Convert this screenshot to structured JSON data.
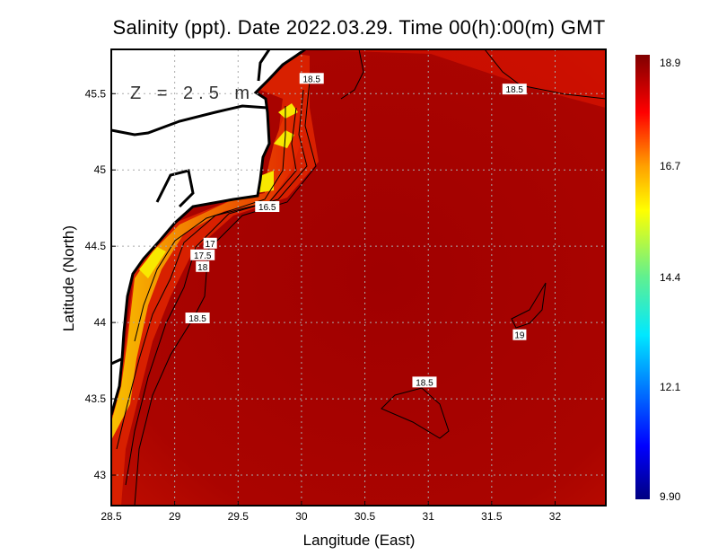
{
  "title": "Salinity (ppt). Date 2022.03.29. Time 00(h):00(m) GMT",
  "depth_label": "Z = 2.5 m",
  "xlabel": "Langitude (East)",
  "ylabel": "Latitude (North)",
  "x_ticks": [
    "28.5",
    "29",
    "29.5",
    "30",
    "30.5",
    "31",
    "31.5",
    "32"
  ],
  "x_tick_values": [
    28.5,
    29,
    29.5,
    30,
    30.5,
    31,
    31.5,
    32
  ],
  "y_ticks": [
    "43",
    "43.5",
    "44",
    "44.5",
    "45",
    "45.5"
  ],
  "y_tick_values": [
    43,
    43.5,
    44,
    44.5,
    45,
    45.5
  ],
  "x_range": [
    28.5,
    32.4
  ],
  "y_range": [
    42.8,
    45.79
  ],
  "colorbar": {
    "labels": [
      "18.9",
      "16.7",
      "14.4",
      "12.1",
      "9.90"
    ],
    "min": 9.9,
    "max": 18.9
  },
  "contour_labels": [
    {
      "text": "18.5",
      "lon": 30.08,
      "lat": 45.6
    },
    {
      "text": "18.5",
      "lon": 31.68,
      "lat": 45.53
    },
    {
      "text": "16.5",
      "lon": 29.73,
      "lat": 44.76
    },
    {
      "text": "17",
      "lon": 29.28,
      "lat": 44.52
    },
    {
      "text": "17.5",
      "lon": 29.22,
      "lat": 44.46
    },
    {
      "text": "18",
      "lon": 29.22,
      "lat": 44.42
    },
    {
      "text": "18.5",
      "lon": 29.18,
      "lat": 44.03
    },
    {
      "text": "19",
      "lon": 31.72,
      "lat": 43.92
    },
    {
      "text": "18.5",
      "lon": 30.97,
      "lat": 43.61
    }
  ],
  "colors": {
    "sea": "#a80000",
    "sea_dark": "#990000",
    "coastal_orange": "#f07000",
    "coastal_yellow": "#f8e000",
    "land": "#ffffff"
  }
}
